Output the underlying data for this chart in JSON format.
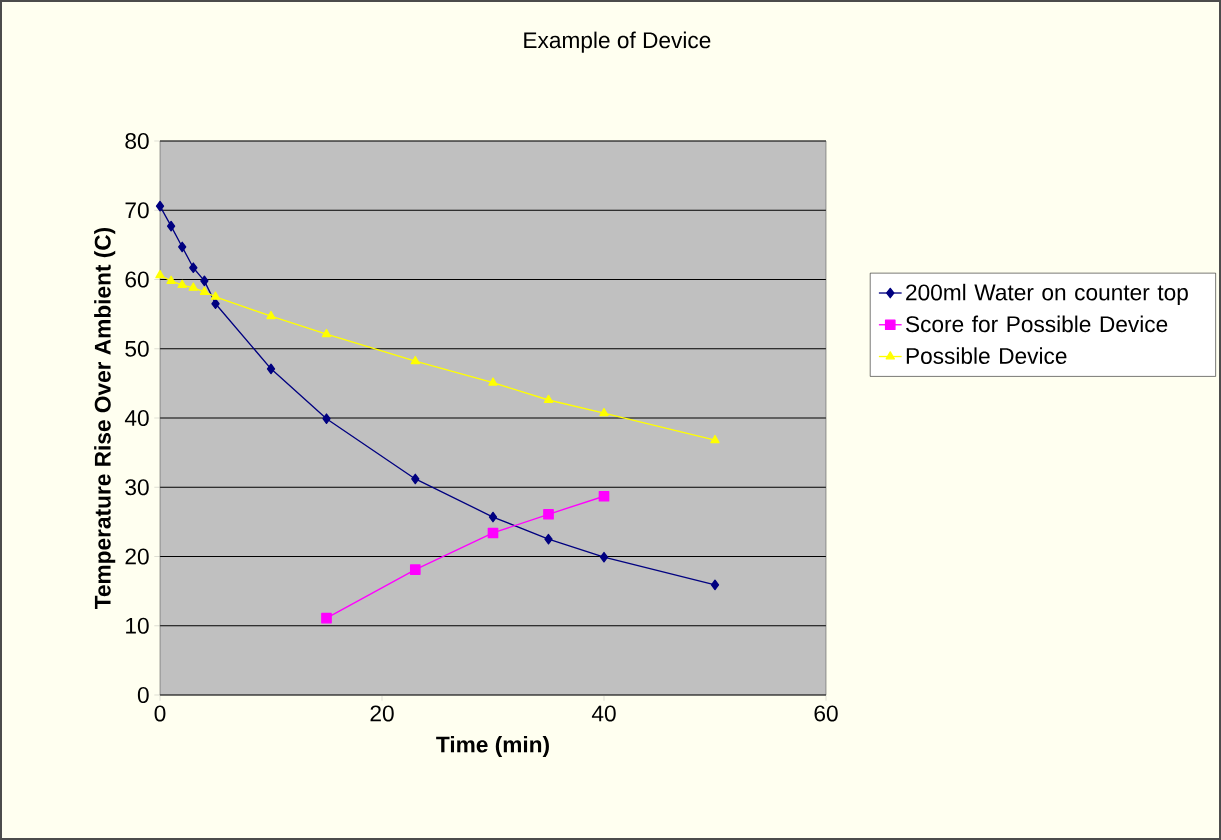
{
  "chart_data": {
    "type": "line",
    "title": "Example of Device",
    "xlabel": "Time (min)",
    "ylabel": "Temperature Rise Over Ambient (C)",
    "xlim": [
      0,
      60
    ],
    "xticks": [
      0,
      20,
      40,
      60
    ],
    "ylim": [
      0,
      80
    ],
    "yticks": [
      0,
      10,
      20,
      30,
      40,
      50,
      60,
      70,
      80
    ],
    "grid": "y",
    "legend": "right",
    "series": [
      {
        "name": "200ml Water on counter top",
        "color": "#000080",
        "marker": "diamond",
        "x": [
          0,
          1,
          2,
          3,
          4,
          5,
          10,
          15,
          23,
          30,
          35,
          40,
          50
        ],
        "values": [
          70.6,
          67.7,
          64.7,
          61.7,
          59.8,
          56.5,
          47.1,
          39.9,
          31.2,
          25.7,
          22.5,
          19.9,
          15.9
        ]
      },
      {
        "name": "Score for Possible Device",
        "color": "#ff00ff",
        "marker": "square",
        "x": [
          15,
          23,
          30,
          35,
          40
        ],
        "values": [
          11.1,
          18.1,
          23.4,
          26.1,
          28.7
        ]
      },
      {
        "name": "Possible Device",
        "color": "#ffff00",
        "marker": "triangle",
        "x": [
          0,
          1,
          2,
          3,
          4,
          5,
          10,
          15,
          23,
          30,
          35,
          40,
          50
        ],
        "values": [
          60.6,
          59.8,
          59.2,
          58.8,
          58.2,
          57.5,
          54.7,
          52.1,
          48.2,
          45.1,
          42.6,
          40.7,
          36.8
        ]
      }
    ]
  }
}
